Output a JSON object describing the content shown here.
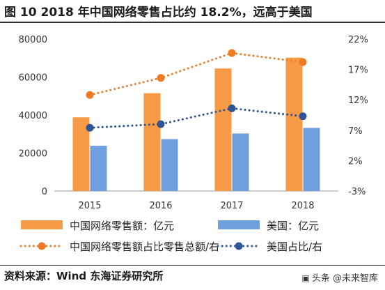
{
  "title": "图 10 2018 年中国网络零售占比约 18.2%，远高于美国",
  "source": "资料来源：Wind 东海证券研究所",
  "watermark": {
    "icon": "toutiao-icon",
    "text": "头条 @未来智库"
  },
  "colors": {
    "china": "#F79A46",
    "us": "#6FA0DD",
    "china_line": "#EE7B24",
    "us_line": "#2F5597",
    "axis": "#999999",
    "grid": "#D9D9D9"
  },
  "chart_data": {
    "type": "bar",
    "categories": [
      "2015",
      "2016",
      "2017",
      "2018"
    ],
    "series": [
      {
        "name": "中国网络零售额：亿元",
        "kind": "bar",
        "axis": "left",
        "color": "#F79A46",
        "values": [
          38800,
          51500,
          64500,
          70200
        ]
      },
      {
        "name": "美国：亿元",
        "kind": "bar",
        "axis": "left",
        "color": "#6FA0DD",
        "values": [
          23800,
          27300,
          30300,
          33200
        ]
      },
      {
        "name": "中国网络零售额占比零售总额/右",
        "kind": "line",
        "axis": "right",
        "color": "#EE7B24",
        "values": [
          12.8,
          15.6,
          19.7,
          18.2
        ]
      },
      {
        "name": "美国占比/右",
        "kind": "line",
        "axis": "right",
        "color": "#2F5597",
        "values": [
          7.4,
          8.0,
          10.6,
          9.3
        ]
      }
    ],
    "left_axis": {
      "ylim": [
        0,
        80000
      ],
      "ticks": [
        "0",
        "20000",
        "40000",
        "60000",
        "80000"
      ]
    },
    "right_axis": {
      "ylim": [
        -3,
        22
      ],
      "ticks": [
        "-3%",
        "2%",
        "7%",
        "12%",
        "17%",
        "22%"
      ]
    },
    "grid": false,
    "legend_position": "bottom"
  }
}
